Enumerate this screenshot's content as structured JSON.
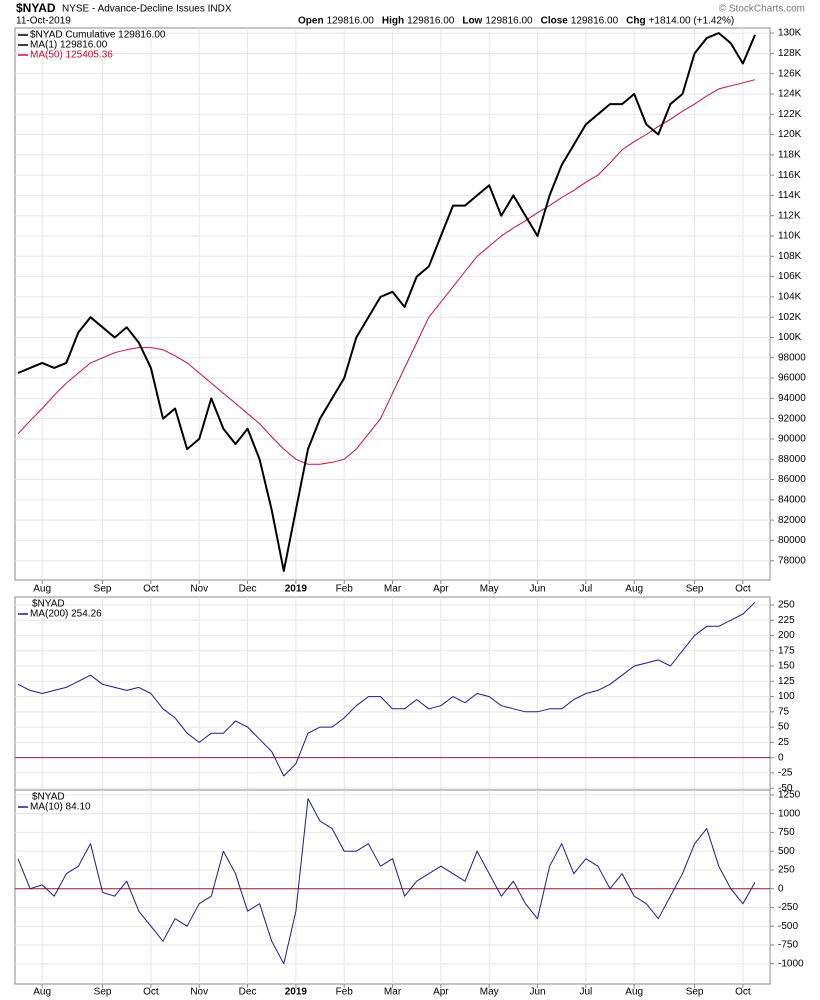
{
  "header": {
    "symbol": "$NYAD",
    "description": "NYSE - Advance-Decline Issues INDX",
    "date": "11-Oct-2019",
    "copyright": "© StockCharts.com",
    "quote": [
      {
        "label": "Open",
        "value": "129816.00"
      },
      {
        "label": "High",
        "value": "129816.00"
      },
      {
        "label": "Low",
        "value": "129816.00"
      },
      {
        "label": "Close",
        "value": "129816.00"
      },
      {
        "label": "Chg",
        "value": "+1814.00 (+1.42%)"
      }
    ]
  },
  "chart_data": [
    {
      "type": "line",
      "legend_extra": "MA(1) 129816.00",
      "categories": [
        null,
        null,
        "Aug",
        null,
        null,
        null,
        null,
        "Sep",
        null,
        null,
        null,
        "Oct",
        null,
        null,
        null,
        "Nov",
        null,
        null,
        null,
        "Dec",
        null,
        null,
        null,
        "2019",
        null,
        null,
        null,
        "Feb",
        null,
        null,
        null,
        "Mar",
        null,
        null,
        null,
        "Apr",
        null,
        null,
        null,
        "May",
        null,
        null,
        null,
        "Jun",
        null,
        null,
        null,
        "Jul",
        null,
        null,
        null,
        "Aug",
        null,
        null,
        null,
        null,
        "Sep",
        null,
        null,
        null,
        "Oct",
        null
      ],
      "series": [
        {
          "name": "$NYAD Cumulative 129816.00",
          "color": "#000000",
          "width": 2,
          "values": [
            96500,
            97000,
            97500,
            97000,
            97500,
            100500,
            102000,
            101000,
            100000,
            101000,
            99500,
            97000,
            92000,
            93000,
            89000,
            90000,
            94000,
            91000,
            89500,
            91000,
            88000,
            83000,
            77000,
            83000,
            89000,
            92000,
            94000,
            96000,
            100000,
            102000,
            104000,
            104500,
            103000,
            106000,
            107000,
            110000,
            113000,
            113000,
            114000,
            115000,
            112000,
            114000,
            112000,
            110000,
            114000,
            117000,
            119000,
            121000,
            122000,
            123000,
            123000,
            124000,
            121000,
            120000,
            123000,
            124000,
            128000,
            129500,
            130000,
            129000,
            127000,
            129816
          ]
        },
        {
          "name": "MA(50) 125405.36",
          "color": "#c8102e",
          "width": 1,
          "values": [
            90500,
            91800,
            93000,
            94300,
            95500,
            96500,
            97500,
            98000,
            98500,
            98800,
            99000,
            99000,
            98800,
            98200,
            97500,
            96500,
            95500,
            94500,
            93500,
            92500,
            91500,
            90200,
            89000,
            88000,
            87500,
            87500,
            87700,
            88000,
            89000,
            90500,
            92000,
            94500,
            97000,
            99500,
            102000,
            103500,
            105000,
            106500,
            108000,
            109000,
            110000,
            110800,
            111500,
            112300,
            113000,
            113800,
            114500,
            115300,
            116000,
            117200,
            118500,
            119300,
            120000,
            120800,
            121500,
            122300,
            123000,
            123800,
            124500,
            124800,
            125100,
            125405.36
          ]
        }
      ],
      "ylim": [
        76100,
        130500
      ],
      "yticks": [
        78000,
        80000,
        82000,
        84000,
        86000,
        88000,
        90000,
        92000,
        94000,
        96000,
        98000,
        {
          "value": 100000,
          "label": "100K"
        },
        {
          "value": 102000,
          "label": "102K"
        },
        {
          "value": 104000,
          "label": "104K"
        },
        {
          "value": 106000,
          "label": "106K"
        },
        {
          "value": 108000,
          "label": "108K"
        },
        {
          "value": 110000,
          "label": "110K"
        },
        {
          "value": 112000,
          "label": "112K"
        },
        {
          "value": 114000,
          "label": "114K"
        },
        {
          "value": 116000,
          "label": "116K"
        },
        {
          "value": 118000,
          "label": "118K"
        },
        {
          "value": 120000,
          "label": "120K"
        },
        {
          "value": 122000,
          "label": "122K"
        },
        {
          "value": 124000,
          "label": "124K"
        },
        {
          "value": 126000,
          "label": "126K"
        },
        {
          "value": 128000,
          "label": "128K"
        },
        {
          "value": 130000,
          "label": "130K"
        }
      ],
      "grid": true
    },
    {
      "type": "line",
      "label": "$NYAD",
      "series": [
        {
          "name": "MA(200) 254.26",
          "color": "#1a1a8c",
          "width": 1,
          "values": [
            120,
            110,
            105,
            110,
            115,
            125,
            135,
            120,
            115,
            110,
            115,
            105,
            80,
            65,
            40,
            25,
            40,
            40,
            60,
            50,
            30,
            10,
            -30,
            -10,
            40,
            50,
            50,
            65,
            85,
            100,
            100,
            80,
            80,
            95,
            80,
            85,
            100,
            90,
            105,
            100,
            85,
            80,
            75,
            75,
            80,
            80,
            95,
            105,
            110,
            120,
            135,
            150,
            155,
            160,
            150,
            175,
            200,
            215,
            215,
            225,
            235,
            254.26
          ]
        }
      ],
      "ylim": [
        -53,
        263
      ],
      "yticks": [
        -50,
        -25,
        0,
        25,
        50,
        75,
        100,
        125,
        150,
        175,
        200,
        225,
        250
      ],
      "reference_line": 0,
      "grid": true
    },
    {
      "type": "line",
      "label": "$NYAD",
      "categories": [
        null,
        null,
        "Aug",
        null,
        null,
        null,
        null,
        "Sep",
        null,
        null,
        null,
        "Oct",
        null,
        null,
        null,
        "Nov",
        null,
        null,
        null,
        "Dec",
        null,
        null,
        null,
        "2019",
        null,
        null,
        null,
        "Feb",
        null,
        null,
        null,
        "Mar",
        null,
        null,
        null,
        "Apr",
        null,
        null,
        null,
        "May",
        null,
        null,
        null,
        "Jun",
        null,
        null,
        null,
        "Jul",
        null,
        null,
        null,
        "Aug",
        null,
        null,
        null,
        null,
        "Sep",
        null,
        null,
        null,
        "Oct",
        null
      ],
      "series": [
        {
          "name": "MA(10) 84.10",
          "color": "#1a1a8c",
          "width": 1,
          "values": [
            400,
            0,
            50,
            -100,
            200,
            300,
            600,
            -50,
            -100,
            100,
            -300,
            -500,
            -700,
            -400,
            -500,
            -200,
            -100,
            500,
            200,
            -300,
            -200,
            -700,
            -1000,
            -300,
            1200,
            900,
            800,
            500,
            500,
            600,
            300,
            400,
            -100,
            100,
            200,
            300,
            200,
            100,
            500,
            200,
            -100,
            100,
            -200,
            -400,
            300,
            600,
            200,
            400,
            300,
            0,
            200,
            -100,
            -200,
            -400,
            -100,
            200,
            600,
            800,
            300,
            0,
            -200,
            84.1
          ]
        }
      ],
      "ylim": [
        -1270,
        1315
      ],
      "yticks": [
        -1000,
        -750,
        -500,
        -250,
        0,
        250,
        500,
        750,
        1000,
        1250
      ],
      "reference_line": 0,
      "grid": true
    }
  ]
}
